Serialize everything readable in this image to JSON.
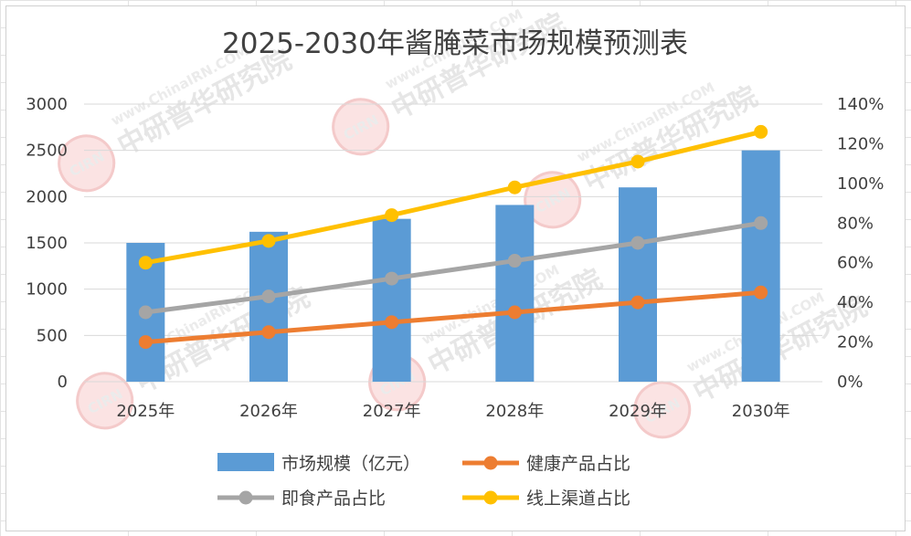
{
  "chart_data": {
    "type": "bar",
    "title": "2025-2030年酱腌菜市场规模预测表",
    "categories": [
      "2025年",
      "2026年",
      "2027年",
      "2028年",
      "2029年",
      "2030年"
    ],
    "y_left": {
      "ylim": [
        0,
        3000
      ],
      "ticks": [
        0,
        500,
        1000,
        1500,
        2000,
        2500,
        3000
      ]
    },
    "y_right": {
      "ylim": [
        0,
        1.4
      ],
      "ticks": [
        "0%",
        "20%",
        "40%",
        "60%",
        "80%",
        "100%",
        "120%",
        "140%"
      ]
    },
    "series": [
      {
        "name": "市场规模（亿元）",
        "type": "bar",
        "axis": "left",
        "color": "#5b9bd5",
        "values": [
          1500,
          1620,
          1760,
          1910,
          2100,
          2500
        ]
      },
      {
        "name": "健康产品占比",
        "type": "line",
        "axis": "right",
        "color": "#ed7d31",
        "values": [
          0.2,
          0.25,
          0.3,
          0.35,
          0.4,
          0.45
        ]
      },
      {
        "name": "即食产品占比",
        "type": "line",
        "axis": "right",
        "color": "#a5a5a5",
        "values": [
          0.35,
          0.43,
          0.52,
          0.61,
          0.7,
          0.8
        ]
      },
      {
        "name": "线上渠道占比",
        "type": "line",
        "axis": "right",
        "color": "#ffc000",
        "values": [
          0.6,
          0.71,
          0.84,
          0.98,
          1.11,
          1.26
        ]
      }
    ],
    "grid": true,
    "legend": "bottom"
  },
  "watermark": {
    "brand": "中研普华研究院",
    "site": "www.ChinaIRN.COM",
    "logo": "CIRN"
  }
}
